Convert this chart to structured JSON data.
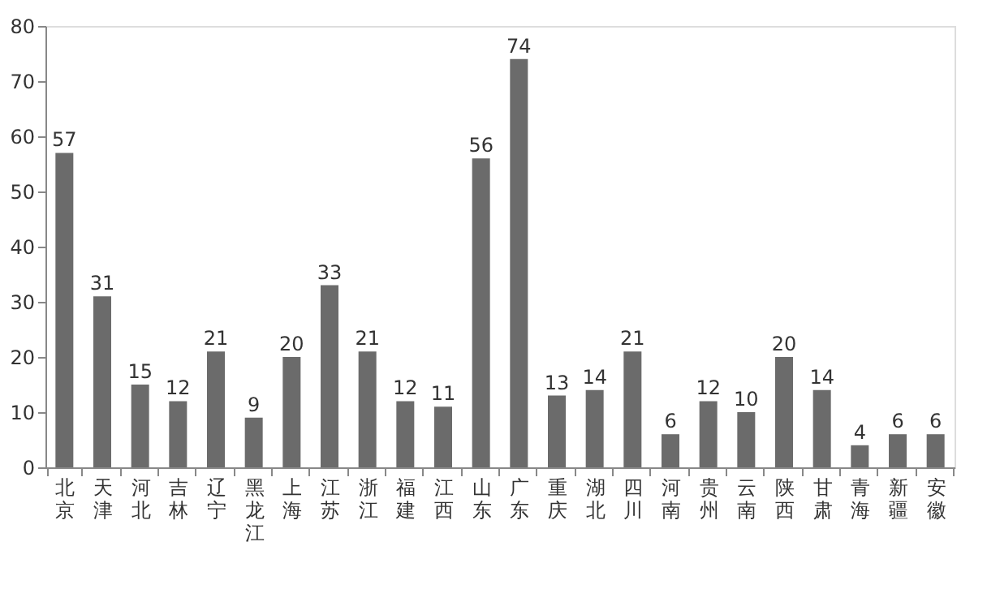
{
  "chart_data": {
    "type": "bar",
    "categories": [
      "北京",
      "天津",
      "河北",
      "吉林",
      "辽宁",
      "黑龙江",
      "上海",
      "江苏",
      "浙江",
      "福建",
      "江西",
      "山东",
      "广东",
      "重庆",
      "湖北",
      "四川",
      "河南",
      "贵州",
      "云南",
      "陕西",
      "甘肃",
      "青海",
      "新疆",
      "安徽"
    ],
    "values": [
      57,
      31,
      15,
      12,
      21,
      9,
      20,
      33,
      21,
      12,
      11,
      56,
      74,
      13,
      14,
      21,
      6,
      12,
      10,
      20,
      14,
      4,
      6,
      6
    ],
    "color": "#6b6b6b",
    "ylim": [
      0,
      80
    ],
    "yticks": [
      0,
      10,
      20,
      30,
      40,
      50,
      60,
      70,
      80
    ],
    "grid": false,
    "data_labels": true
  }
}
